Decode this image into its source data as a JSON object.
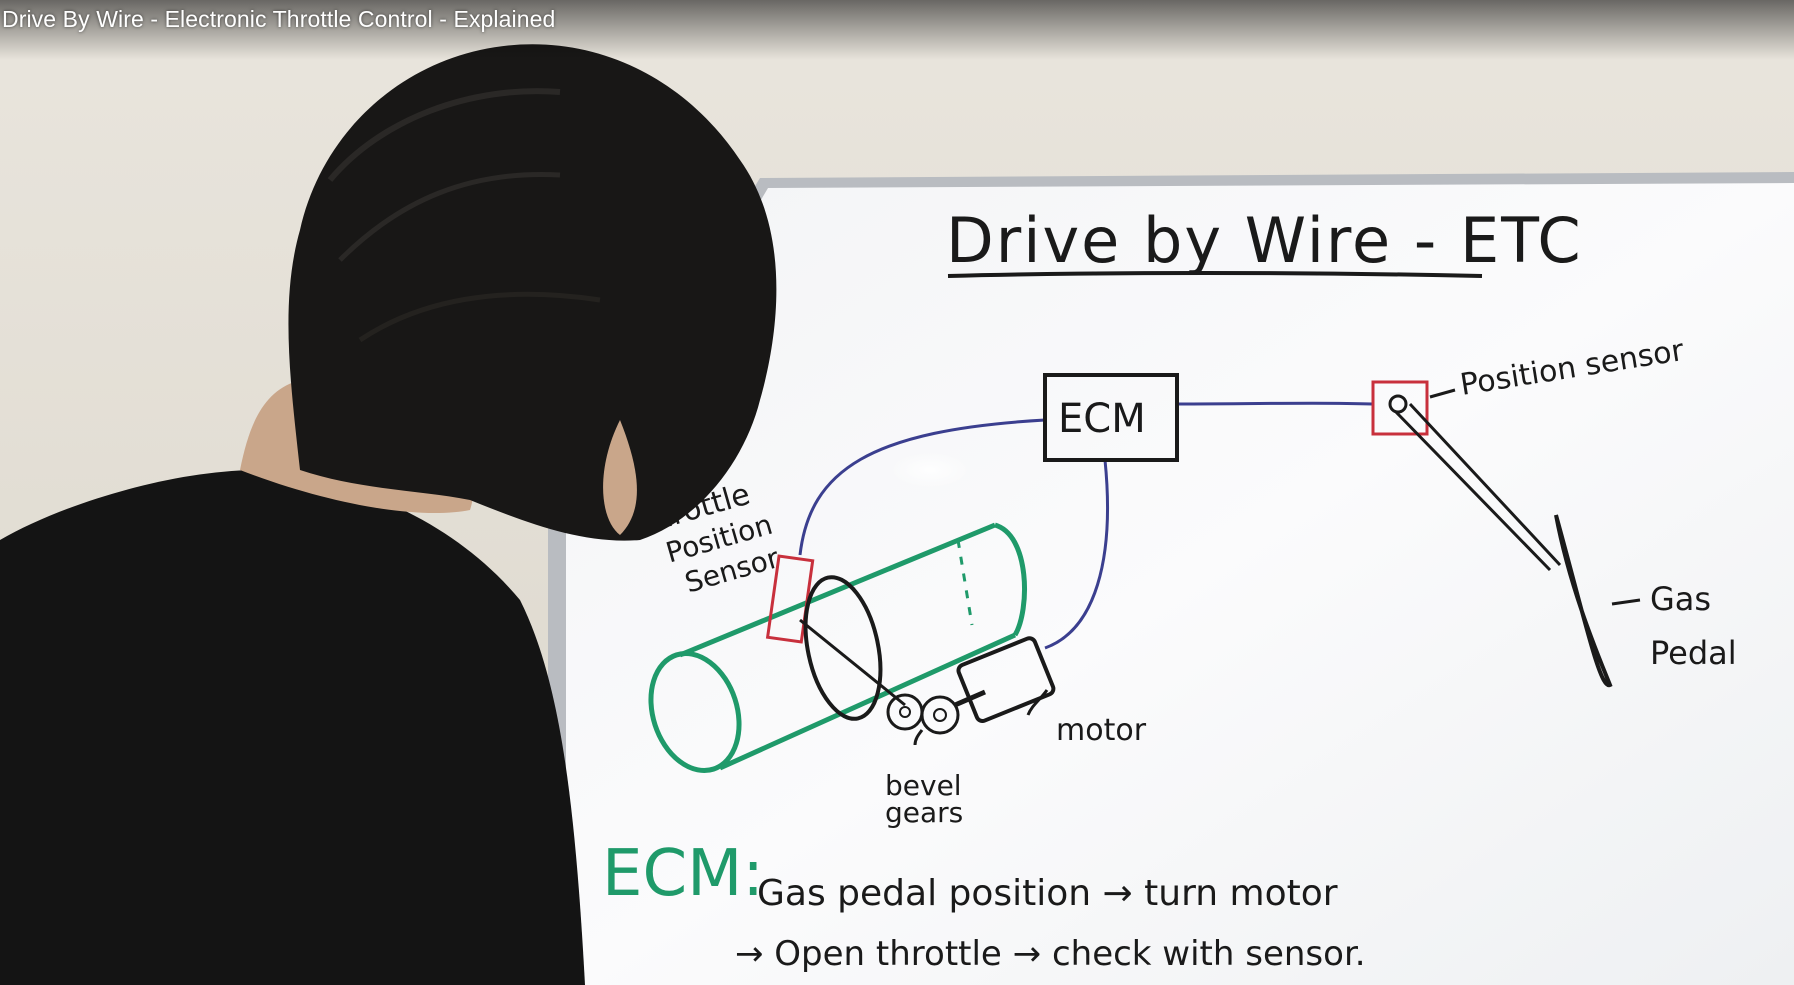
{
  "video": {
    "title": "Drive By Wire - Electronic Throttle Control - Explained"
  },
  "whiteboard": {
    "heading": "Drive by Wire - ETC",
    "labels": {
      "ecm_box": "ECM",
      "position_sensor": "Position sensor",
      "throttle_line1": "Throttle",
      "throttle_line2": "Position",
      "throttle_line3": "Sensor",
      "gas_line1": "Gas",
      "gas_line2": "Pedal",
      "motor": "motor",
      "bevel_line1": "bevel",
      "bevel_line2": "gears"
    },
    "notes": {
      "ecm_prefix": "ECM:",
      "line1": "Gas pedal position → turn motor",
      "line2": "→ Open throttle → check with sensor."
    },
    "colors": {
      "wire": "#3b3f8f",
      "sensor_box": "#c8303c",
      "throttle_body": "#1f9a6a",
      "ecm_note": "#1f9a6a",
      "ink": "#1a1a1a"
    }
  }
}
